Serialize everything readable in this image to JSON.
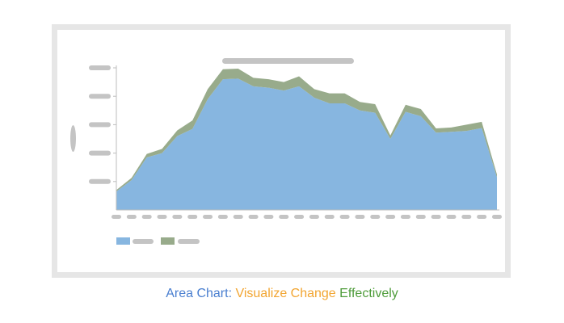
{
  "caption": {
    "part1": "Area Chart: ",
    "part2": "Visualize Change ",
    "part3": "Effectively",
    "color1": "#4a7fd0",
    "color2": "#f2a531",
    "color3": "#4e9c3a"
  },
  "chart_data": {
    "type": "area",
    "stacked": true,
    "title": "",
    "xlabel": "",
    "ylabel": "",
    "ylim": [
      0,
      5
    ],
    "legend_position": "bottom-left",
    "grid": false,
    "placeholder_color": "#c4c4c4",
    "x": [
      1,
      2,
      3,
      4,
      5,
      6,
      7,
      8,
      9,
      10,
      11,
      12,
      13,
      14,
      15,
      16,
      17,
      18,
      19,
      20,
      21,
      22,
      23,
      24,
      25,
      26
    ],
    "series": [
      {
        "color": "#87b6e0",
        "values": [
          0.65,
          1.05,
          1.85,
          2.0,
          2.6,
          2.85,
          3.9,
          4.6,
          4.62,
          4.35,
          4.3,
          4.2,
          4.35,
          3.95,
          3.75,
          3.75,
          3.5,
          3.42,
          2.5,
          3.45,
          3.3,
          2.72,
          2.75,
          2.78,
          2.88,
          1.15
        ]
      },
      {
        "color": "#98ab8b",
        "values": [
          0.05,
          0.08,
          0.12,
          0.15,
          0.2,
          0.3,
          0.35,
          0.35,
          0.35,
          0.3,
          0.3,
          0.3,
          0.35,
          0.3,
          0.35,
          0.35,
          0.3,
          0.3,
          0.12,
          0.25,
          0.25,
          0.15,
          0.15,
          0.22,
          0.22,
          0.1
        ]
      }
    ]
  }
}
